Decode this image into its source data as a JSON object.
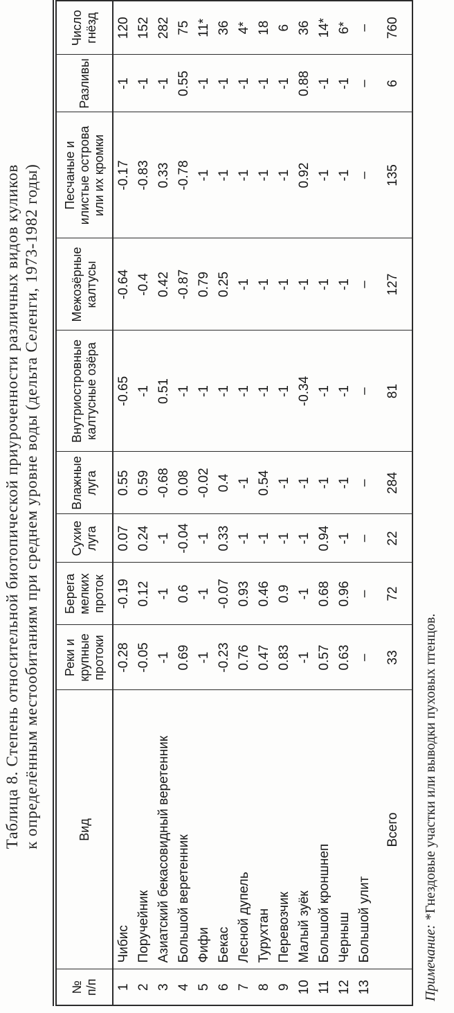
{
  "title": {
    "line1": "Таблица 8. Степень относительной биотопической приуроченности различных видов куликов",
    "line2": "к определённым местообитаниям при среднем уровне воды (дельта Селенги, 1973-1982 годы)"
  },
  "table": {
    "columns": [
      {
        "id": "num",
        "label": "№\nп/п"
      },
      {
        "id": "species",
        "label": "Вид"
      },
      {
        "id": "rivers",
        "label": "Реки и\nкрупные\nпротоки"
      },
      {
        "id": "banks",
        "label": "Берега\nмелких\nпроток"
      },
      {
        "id": "drymeadow",
        "label": "Сухие\nлуга"
      },
      {
        "id": "wetmeadow",
        "label": "Влажные\nлуга"
      },
      {
        "id": "lakes",
        "label": "Внутриостровные\nкалтусные озёра"
      },
      {
        "id": "kaltus",
        "label": "Межозёрные\nкалтусы"
      },
      {
        "id": "islands",
        "label": "Песчаные и\nилистые острова\nили их кромки"
      },
      {
        "id": "floods",
        "label": "Разливы"
      },
      {
        "id": "nests",
        "label": "Число\nгнёзд"
      }
    ],
    "rows": [
      [
        "1",
        "Чибис",
        "-0.28",
        "-0.19",
        "0.07",
        "0.55",
        "-0.65",
        "-0.64",
        "-0.17",
        "-1",
        "120"
      ],
      [
        "2",
        "Поручейник",
        "-0.05",
        "0.12",
        "0.24",
        "0.59",
        "-1",
        "-0.4",
        "-0.83",
        "-1",
        "152"
      ],
      [
        "3",
        "Азиатский бекасовидный веретенник",
        "-1",
        "-1",
        "-1",
        "-0.68",
        "0.51",
        "0.42",
        "0.33",
        "-1",
        "282"
      ],
      [
        "4",
        "Большой веретенник",
        "0.69",
        "0.6",
        "-0.04",
        "0.08",
        "-1",
        "-0.87",
        "-0.78",
        "0.55",
        "75"
      ],
      [
        "5",
        "Фифи",
        "-1",
        "-1",
        "-1",
        "-0.02",
        "-1",
        "0.79",
        "-1",
        "-1",
        "11*"
      ],
      [
        "6",
        "Бекас",
        "-0.23",
        "-0.07",
        "0.33",
        "0.4",
        "-1",
        "0.25",
        "-1",
        "-1",
        "36"
      ],
      [
        "7",
        "Лесной дупель",
        "0.76",
        "0.93",
        "-1",
        "-1",
        "-1",
        "-1",
        "-1",
        "-1",
        "4*"
      ],
      [
        "8",
        "Турухтан",
        "0.47",
        "0.46",
        "-1",
        "0.54",
        "-1",
        "-1",
        "-1",
        "-1",
        "18"
      ],
      [
        "9",
        "Перевозчик",
        "0.83",
        "0.9",
        "-1",
        "-1",
        "-1",
        "-1",
        "-1",
        "-1",
        "6"
      ],
      [
        "10",
        "Малый зуёк",
        "-1",
        "-1",
        "-1",
        "-1",
        "-0.34",
        "-1",
        "0.92",
        "0.88",
        "36"
      ],
      [
        "11",
        "Большой кроншнеп",
        "0.57",
        "0.68",
        "0.94",
        "-1",
        "-1",
        "-1",
        "-1",
        "-1",
        "14*"
      ],
      [
        "12",
        "Черныш",
        "0.63",
        "0.96",
        "-1",
        "-1",
        "-1",
        "-1",
        "-1",
        "-1",
        "6*"
      ],
      [
        "13",
        "Большой улит",
        "–",
        "–",
        "–",
        "–",
        "–",
        "–",
        "–",
        "–",
        "–"
      ]
    ],
    "total_row": [
      "",
      "Всего",
      "33",
      "72",
      "22",
      "284",
      "81",
      "127",
      "135",
      "6",
      "760"
    ]
  },
  "footnote": {
    "label": "Примечание:",
    "text": "*Гнездовые участки или выводки пуховых птенцов."
  }
}
